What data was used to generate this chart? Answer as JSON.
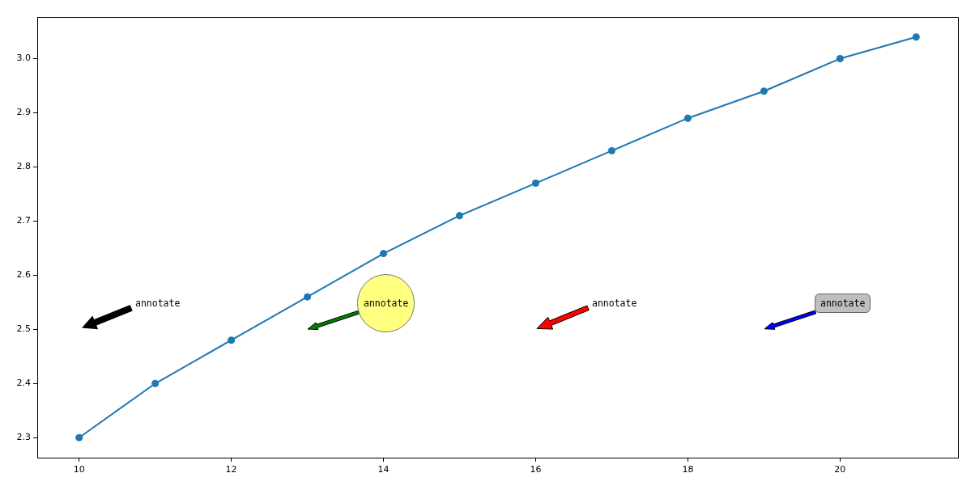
{
  "chart_data": {
    "type": "line",
    "x": [
      10,
      11,
      12,
      13,
      14,
      15,
      16,
      17,
      18,
      19,
      20,
      21
    ],
    "series": [
      {
        "color": "#1f77b4",
        "values": [
          2.3,
          2.4,
          2.48,
          2.56,
          2.64,
          2.71,
          2.77,
          2.83,
          2.89,
          2.94,
          3.0,
          3.04
        ]
      }
    ],
    "xlim": [
      9.45,
      21.55
    ],
    "ylim": [
      2.263,
      3.077
    ],
    "xticks": [
      10,
      12,
      14,
      16,
      18,
      20
    ],
    "yticks": [
      2.3,
      2.4,
      2.5,
      2.6,
      2.7,
      2.8,
      2.9,
      {
        "value": 3.0,
        "label": "3.0"
      }
    ],
    "marker": "circle",
    "line_style": "solid",
    "annotations": [
      "annotate",
      "annotate",
      "annotate",
      "annotate"
    ]
  }
}
